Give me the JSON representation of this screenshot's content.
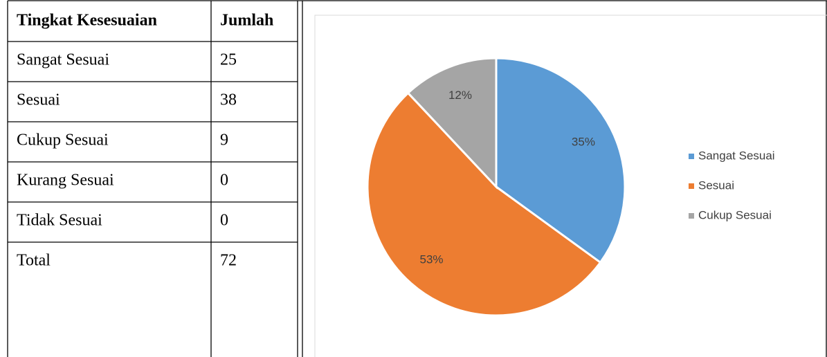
{
  "table": {
    "headers": [
      "Tingkat Kesesuaian",
      "Jumlah"
    ],
    "rows": [
      [
        "Sangat Sesuai",
        "25"
      ],
      [
        "Sesuai",
        "38"
      ],
      [
        "Cukup Sesuai",
        "9"
      ],
      [
        "Kurang Sesuai",
        "0"
      ],
      [
        "Tidak Sesuai",
        "0"
      ],
      [
        "Total",
        "72"
      ]
    ]
  },
  "chart_data": {
    "type": "pie",
    "categories": [
      "Sangat Sesuai",
      "Sesuai",
      "Cukup Sesuai"
    ],
    "values": [
      35,
      53,
      12
    ],
    "value_labels": [
      "35%",
      "53%",
      "12%"
    ],
    "colors": [
      "#5b9bd5",
      "#ed7d31",
      "#a5a5a5"
    ],
    "legend": "right"
  }
}
